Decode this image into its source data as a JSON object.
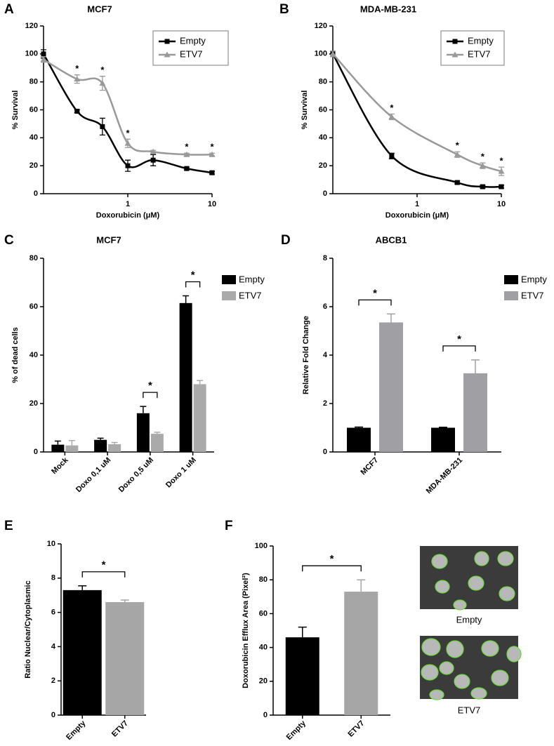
{
  "chart_data": [
    {
      "type": "line",
      "panel_label": "A",
      "title": "MCF7",
      "x_label": "Doxorubicin (μM)",
      "y_label": "% Survival",
      "x": [
        0.1,
        0.25,
        0.5,
        1,
        2,
        5,
        10
      ],
      "log_x": true,
      "xlim": [
        0.1,
        10
      ],
      "xticks": [
        1,
        10
      ],
      "ylim": [
        0,
        120
      ],
      "yticks": [
        0,
        20,
        40,
        60,
        80,
        100,
        120
      ],
      "series": [
        {
          "name": "Empty",
          "color": "#000000",
          "marker": "square",
          "values": [
            100,
            59,
            48,
            20,
            24,
            18,
            15
          ],
          "errors": [
            3,
            1,
            6,
            4,
            4,
            1,
            1
          ]
        },
        {
          "name": "ETV7",
          "color": "#999999",
          "marker": "triangle",
          "values": [
            96,
            82,
            79,
            36,
            30,
            28,
            28
          ],
          "errors": [
            2,
            3,
            5,
            3,
            1,
            1,
            1
          ],
          "significance": [
            null,
            "*",
            "*",
            "*",
            null,
            "*",
            "*"
          ]
        }
      ]
    },
    {
      "type": "line",
      "panel_label": "B",
      "title": "MDA-MB-231",
      "x_label": "Doxorubicin (μM)",
      "y_label": "% Survival",
      "x": [
        0.1,
        0.5,
        3,
        6,
        10
      ],
      "log_x": true,
      "xlim": [
        0.1,
        10
      ],
      "xticks": [
        1,
        10
      ],
      "ylim": [
        0,
        120
      ],
      "yticks": [
        0,
        20,
        40,
        60,
        80,
        100,
        120
      ],
      "series": [
        {
          "name": "Empty",
          "color": "#000000",
          "marker": "square",
          "values": [
            100,
            27,
            8,
            5,
            5
          ],
          "errors": [
            2,
            2,
            1,
            1,
            1
          ]
        },
        {
          "name": "ETV7",
          "color": "#999999",
          "marker": "triangle",
          "values": [
            100,
            55,
            28,
            20,
            16
          ],
          "errors": [
            2,
            2,
            2,
            2,
            3
          ],
          "significance": [
            null,
            "*",
            "*",
            "*",
            "*"
          ]
        }
      ]
    },
    {
      "type": "bar",
      "panel_label": "C",
      "title": "MCF7",
      "y_label": "% of dead cells",
      "categories": [
        "Mock",
        "Doxo 0,1 uM",
        "Doxo 0,5 uM",
        "Doxo 1 uM"
      ],
      "ylim": [
        0,
        80
      ],
      "yticks": [
        0,
        20,
        40,
        60,
        80
      ],
      "series": [
        {
          "name": "Empty",
          "color": "#000000",
          "values": [
            3,
            5,
            16,
            61.5
          ],
          "errors": [
            1.5,
            0.7,
            2.8,
            3
          ]
        },
        {
          "name": "ETV7",
          "color": "#aaaaaa",
          "values": [
            2.7,
            3.2,
            7.5,
            28
          ],
          "errors": [
            2,
            0.7,
            0.6,
            1.5
          ]
        }
      ],
      "significance": [
        null,
        null,
        "*",
        "*"
      ]
    },
    {
      "type": "bar",
      "panel_label": "D",
      "title": "ABCB1",
      "y_label": "Relative Fold Change",
      "categories": [
        "MCF7",
        "MDA-MB-231"
      ],
      "ylim": [
        0,
        8
      ],
      "yticks": [
        0,
        2,
        4,
        6,
        8
      ],
      "series": [
        {
          "name": "Empty",
          "color": "#000000",
          "values": [
            1,
            1
          ],
          "errors": [
            0.03,
            0.02
          ]
        },
        {
          "name": "ETV7",
          "color": "#a0a0a4",
          "values": [
            5.35,
            3.25
          ],
          "errors": [
            0.35,
            0.55
          ]
        }
      ],
      "significance": [
        "*",
        "*"
      ]
    },
    {
      "type": "bar",
      "panel_label": "E",
      "y_label": "Ratio Nuclear/Cytoplasmic",
      "categories": [
        "Empty",
        "ETV7"
      ],
      "values": [
        7.3,
        6.6
      ],
      "errors": [
        0.25,
        0.12
      ],
      "colors": [
        "#000000",
        "#a6a6a6"
      ],
      "ylim": [
        0,
        10
      ],
      "yticks": [
        0,
        2,
        4,
        6,
        8,
        10
      ],
      "significance": "*"
    },
    {
      "type": "bar",
      "panel_label": "F",
      "y_label": "Doxorubicin Efflux Area (Pixel²)",
      "categories": [
        "Empty",
        "ETV7"
      ],
      "values": [
        46,
        73
      ],
      "errors": [
        6,
        7
      ],
      "colors": [
        "#000000",
        "#a6a6a6"
      ],
      "ylim": [
        0,
        100
      ],
      "yticks": [
        0,
        20,
        40,
        60,
        80,
        100
      ],
      "significance": "*"
    }
  ],
  "micrographs": {
    "captions": [
      "Empty",
      "ETV7"
    ]
  }
}
